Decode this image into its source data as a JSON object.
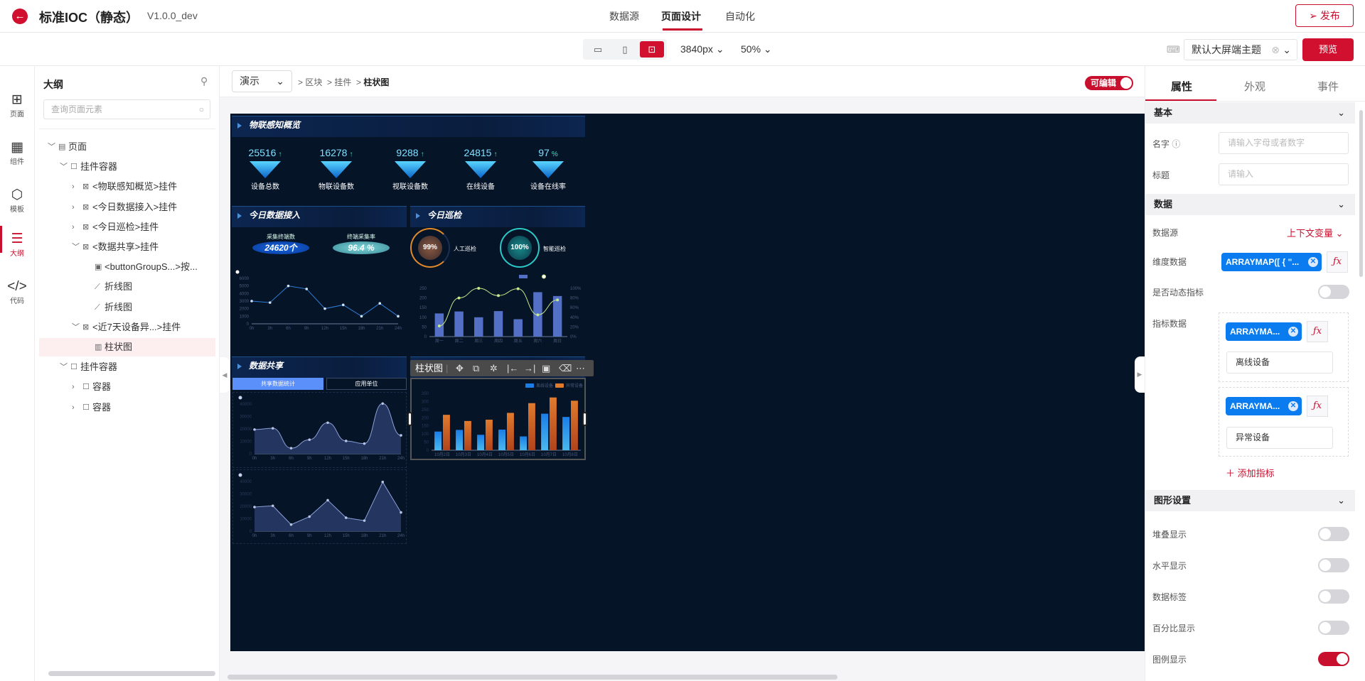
{
  "header": {
    "title": "标准IOC（静态）",
    "version": "V1.0.0_dev",
    "nav": [
      "数据源",
      "页面设计",
      "自动化"
    ],
    "active_nav": "页面设计",
    "publish_label": "发布"
  },
  "toolbar": {
    "width_value": "3840px",
    "zoom_value": "50%",
    "theme_value": "默认大屏端主题",
    "preview_label": "预览",
    "devices": [
      "desktop-icon",
      "tablet-icon",
      "large-screen-icon"
    ],
    "active_device": "large-screen-icon"
  },
  "iconbar": [
    {
      "label": "页面",
      "icon": "⊞"
    },
    {
      "label": "组件",
      "icon": "▦"
    },
    {
      "label": "模板",
      "icon": "⬡"
    },
    {
      "label": "大纲",
      "icon": "☰",
      "active": true
    },
    {
      "label": "代码",
      "icon": "</>"
    }
  ],
  "outline": {
    "title": "大纲",
    "search_placeholder": "查询页面元素",
    "items": [
      {
        "label": "页面",
        "level": 0,
        "expanded": true,
        "icon": "▤"
      },
      {
        "label": "挂件容器",
        "level": 1,
        "expanded": true,
        "icon": "☐"
      },
      {
        "label": "<物联感知概览>挂件",
        "level": 2,
        "expanded": false,
        "icon": "⊠"
      },
      {
        "label": "<今日数据接入>挂件",
        "level": 2,
        "expanded": false,
        "icon": "⊠"
      },
      {
        "label": "<今日巡检>挂件",
        "level": 2,
        "expanded": false,
        "icon": "⊠"
      },
      {
        "label": "<数据共享>挂件",
        "level": 2,
        "expanded": true,
        "icon": "⊠"
      },
      {
        "label": "<buttonGroupS...>按...",
        "level": 3,
        "icon": "▣"
      },
      {
        "label": "折线图",
        "level": 3,
        "icon": "⟋"
      },
      {
        "label": "折线图",
        "level": 3,
        "icon": "⟋"
      },
      {
        "label": "<近7天设备异...>挂件",
        "level": 2,
        "expanded": true,
        "icon": "⊠"
      },
      {
        "label": "柱状图",
        "level": 3,
        "icon": "▥",
        "selected": true
      },
      {
        "label": "挂件容器",
        "level": 1,
        "expanded": true,
        "icon": "☐"
      },
      {
        "label": "容器",
        "level": 2,
        "expanded": false,
        "icon": "☐"
      },
      {
        "label": "容器",
        "level": 2,
        "expanded": false,
        "icon": "☐"
      }
    ]
  },
  "canvas": {
    "mode": "演示",
    "breadcrumb": [
      "区块",
      "挂件",
      "柱状图"
    ],
    "editable_label": "可编辑",
    "editable": true,
    "selection_toolbar": {
      "label": "柱状图",
      "actions": [
        "move-icon",
        "copy-icon",
        "debug-icon",
        "align-left-icon",
        "align-right-icon",
        "image-icon",
        "delete-icon",
        "more-icon"
      ]
    }
  },
  "dashboard": {
    "panel1": {
      "title": "物联感知概览",
      "kpis": [
        {
          "value": "25516",
          "suffix": "↑",
          "label": "设备总数"
        },
        {
          "value": "16278",
          "suffix": "↑",
          "label": "物联设备数"
        },
        {
          "value": "9288",
          "suffix": "↑",
          "label": "视联设备数"
        },
        {
          "value": "24815",
          "suffix": "↑",
          "label": "在线设备"
        },
        {
          "value": "97",
          "suffix": "%",
          "label": "设备在线率"
        }
      ]
    },
    "panel2": {
      "title": "今日数据接入",
      "stat1": {
        "label": "采集终端数",
        "value": "24620个"
      },
      "stat2": {
        "label": "终端采集率",
        "value": "96.4 %"
      }
    },
    "panel3": {
      "title": "今日巡检",
      "ring1": {
        "value": "99%",
        "label": "人工巡检"
      },
      "ring2": {
        "value": "100%",
        "label": "智能巡检"
      }
    },
    "panel4": {
      "title": "数据共享",
      "tabs": [
        "共享数据统计",
        "应用单位"
      ],
      "active_tab": "共享数据统计"
    }
  },
  "chart_data": [
    {
      "id": "line",
      "type": "line",
      "x": [
        "0h",
        "3h",
        "6h",
        "9h",
        "12h",
        "15h",
        "18h",
        "21h",
        "24h"
      ],
      "values": [
        3000,
        2800,
        5000,
        4600,
        2000,
        2500,
        1000,
        2700,
        1000
      ],
      "ylim": [
        0,
        6000
      ],
      "yticks": [
        0,
        1000,
        2000,
        3000,
        4000,
        5000,
        6000
      ],
      "color": "#2f7fd9"
    },
    {
      "id": "combo",
      "type": "bar+line",
      "categories": [
        "周一",
        "周二",
        "周三",
        "周四",
        "周五",
        "周六",
        "周日"
      ],
      "bars": [
        120,
        130,
        100,
        132,
        90,
        230,
        210
      ],
      "line": [
        22,
        80,
        100,
        85,
        99,
        45,
        76
      ],
      "ylim": [
        0,
        250
      ],
      "yticks": [
        0,
        50,
        100,
        150,
        200,
        250
      ],
      "y2lim": [
        0,
        100
      ],
      "y2ticks": [
        "0%",
        "20%",
        "40%",
        "60%",
        "80%",
        "100%"
      ],
      "bar_color": "#5470c6",
      "line_color": "#c8e88a"
    },
    {
      "id": "area1",
      "type": "area",
      "smooth": true,
      "x": [
        "0h",
        "3h",
        "6h",
        "9h",
        "12h",
        "15h",
        "18h",
        "21h",
        "24h"
      ],
      "values": [
        19500,
        20500,
        4500,
        11300,
        25000,
        10300,
        8200,
        40400,
        14800
      ],
      "ylim": [
        0,
        40000
      ],
      "color": "#8aa0d8"
    },
    {
      "id": "area2",
      "type": "area",
      "smooth": false,
      "x": [
        "0h",
        "3h",
        "6h",
        "9h",
        "12h",
        "15h",
        "18h",
        "21h",
        "24h"
      ],
      "values": [
        19400,
        20400,
        5300,
        11700,
        24900,
        10800,
        8500,
        39600,
        15100
      ],
      "ylim": [
        0,
        40000
      ],
      "color": "#8aa0d8"
    },
    {
      "id": "bar",
      "type": "bar",
      "categories": [
        "10月2日",
        "10月3日",
        "10月4日",
        "10月5日",
        "10月6日",
        "10月7日",
        "10月8日"
      ],
      "series": [
        {
          "name": "离线设备",
          "values": [
            115,
            125,
            95,
            127,
            85,
            225,
            205
          ],
          "color": "#1a7ee6"
        },
        {
          "name": "异常设备",
          "values": [
            218,
            180,
            188,
            230,
            290,
            325,
            305
          ],
          "color": "#e07a2c"
        }
      ],
      "ylim": [
        0,
        350
      ],
      "yticks": [
        0,
        50,
        100,
        150,
        200,
        250,
        300,
        350
      ],
      "legend": "top-right"
    }
  ],
  "props": {
    "tabs": [
      "属性",
      "外观",
      "事件"
    ],
    "active_tab": "属性",
    "basic": {
      "title": "基本",
      "name_label": "名字",
      "name_placeholder": "请输入字母或者数字",
      "title_label": "标题",
      "title_placeholder": "请输入"
    },
    "data": {
      "title": "数据",
      "source_label": "数据源",
      "source_value": "上下文变量",
      "dim_label": "维度数据",
      "dim_value": "ARRAYMAP([ { \"...",
      "dynamic_label": "是否动态指标",
      "dynamic": false,
      "metric_label": "指标数据",
      "metrics": [
        {
          "expr": "ARRAYMA...",
          "name": "离线设备"
        },
        {
          "expr": "ARRAYMA...",
          "name": "异常设备"
        }
      ],
      "add_metric": "添加指标",
      "fx": "ƒx"
    },
    "graph": {
      "title": "图形设置",
      "toggles": [
        {
          "label": "堆叠显示",
          "on": false
        },
        {
          "label": "水平显示",
          "on": false
        },
        {
          "label": "数据标签",
          "on": false
        },
        {
          "label": "百分比显示",
          "on": false
        },
        {
          "label": "图例显示",
          "on": true
        }
      ]
    },
    "accent": "#c8102e"
  }
}
